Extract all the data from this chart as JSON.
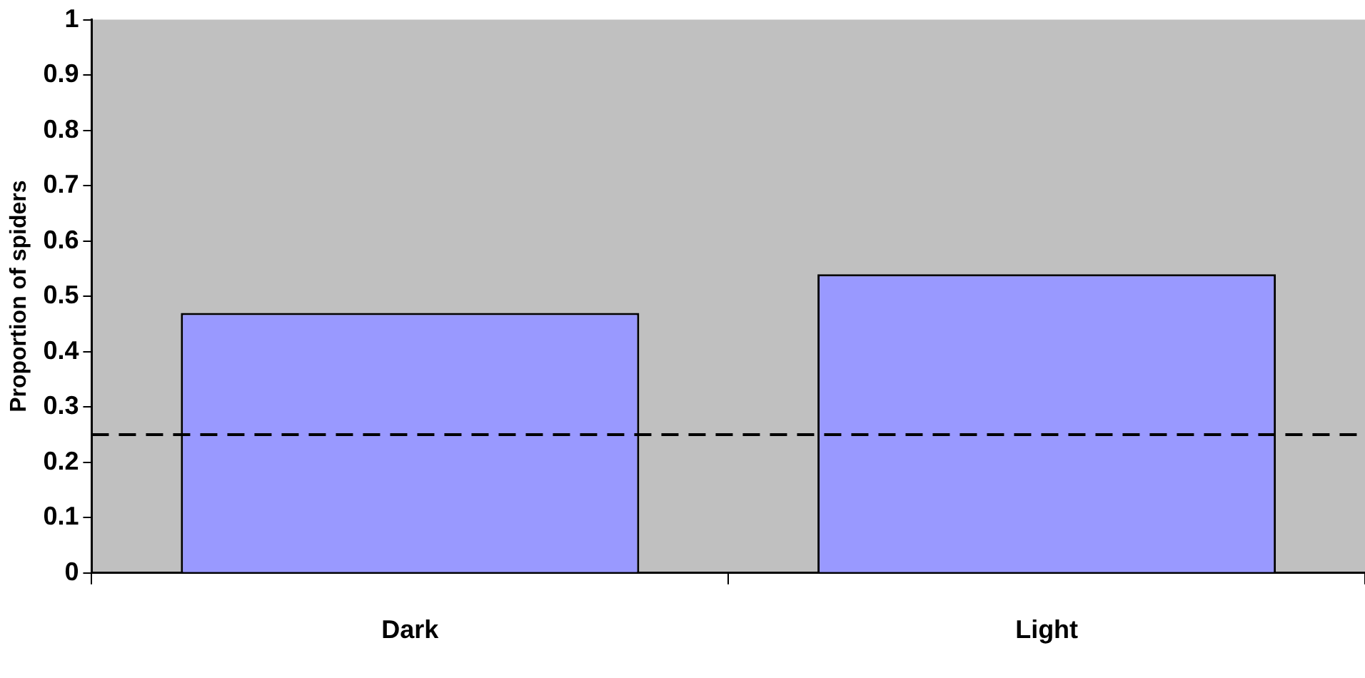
{
  "chart_data": {
    "type": "bar",
    "ylabel": "Proportion of spiders",
    "categories": [
      "Dark",
      "Light"
    ],
    "values": [
      0.47,
      0.54
    ],
    "color": "#9999ff",
    "ylim": [
      0,
      1
    ],
    "yticks": [
      0,
      0.1,
      0.2,
      0.3,
      0.4,
      0.5,
      0.6,
      0.7,
      0.8,
      0.9,
      1
    ],
    "grid": false,
    "legend": false,
    "ref_lines": [
      {
        "axis": "y",
        "value": 0.25,
        "color": "#000000",
        "line_style": "dashed"
      }
    ]
  }
}
